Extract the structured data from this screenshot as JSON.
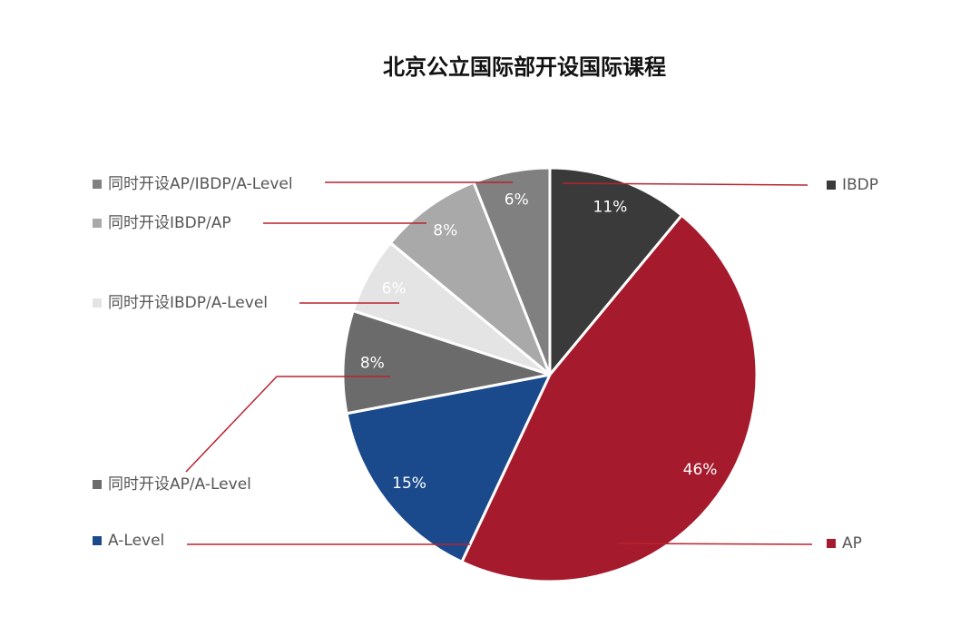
{
  "chart_data": {
    "type": "pie",
    "title": "北京公立国际部开设国际课程",
    "start_angle_deg": 0,
    "direction": "clockwise",
    "label_suffix": "%",
    "series": [
      {
        "name": "IBDP",
        "value": 11,
        "color": "#3a3a3a",
        "label_color": "#ffffff"
      },
      {
        "name": "AP",
        "value": 46,
        "color": "#a51a2c",
        "label_color": "#ffffff"
      },
      {
        "name": "A-Level",
        "value": 15,
        "color": "#1b4a8c",
        "label_color": "#ffffff"
      },
      {
        "name": "同时开设AP/A-Level",
        "value": 8,
        "color": "#6b6b6b",
        "label_color": "#ffffff"
      },
      {
        "name": "同时开设IBDP/A-Level",
        "value": 6,
        "color": "#e4e4e4",
        "label_color": "#ffffff"
      },
      {
        "name": "同时开设IBDP/AP",
        "value": 8,
        "color": "#a9a9a9",
        "label_color": "#ffffff"
      },
      {
        "name": "同时开设AP/IBDP/A-Level",
        "value": 6,
        "color": "#808080",
        "label_color": "#ffffff"
      }
    ],
    "leader_line_color": "#b8232f"
  }
}
